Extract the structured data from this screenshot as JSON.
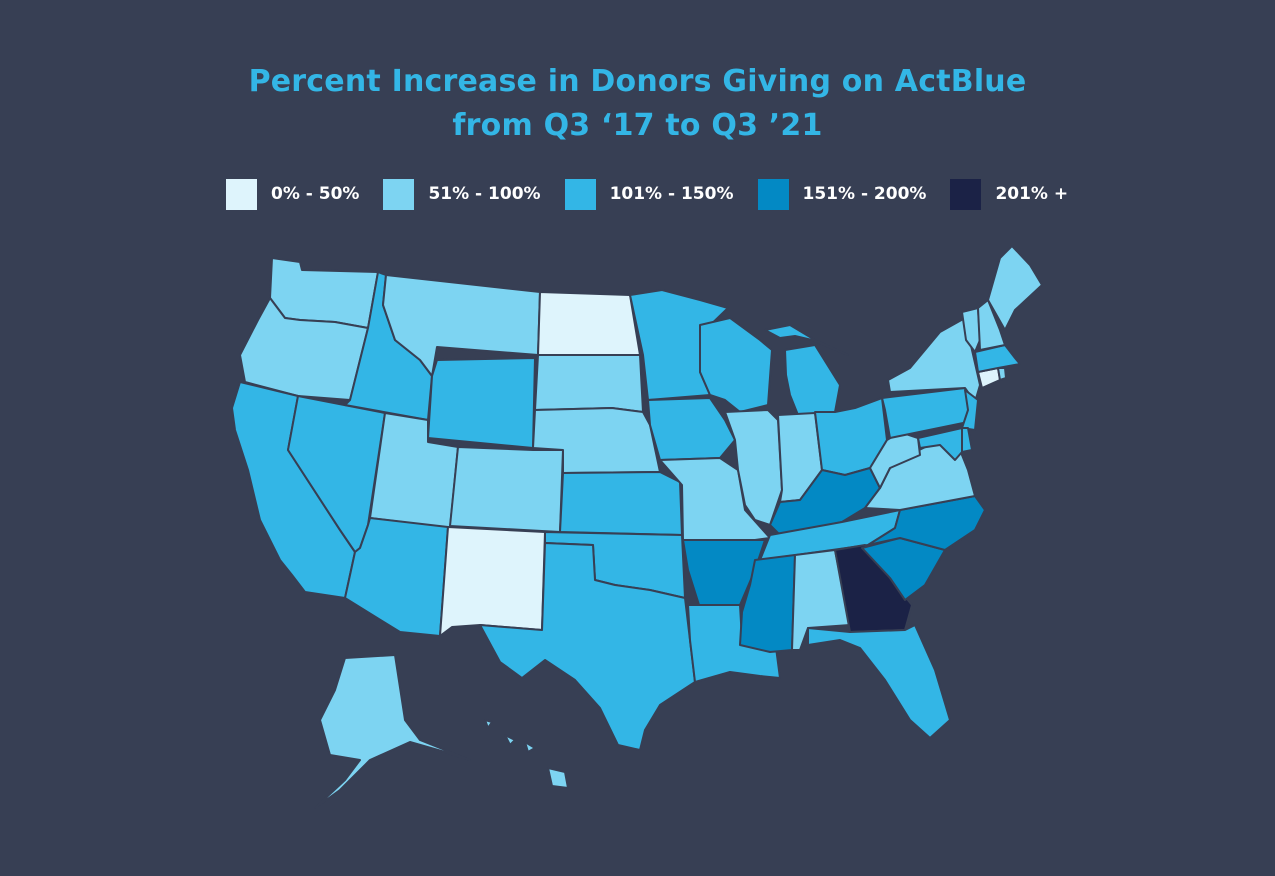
{
  "title": {
    "line1": "Percent Increase in Donors Giving on ActBlue",
    "line2": "from Q3 ‘17 to Q3 ’21"
  },
  "legend": [
    {
      "label": "0% - 50%",
      "bin": "b1",
      "color": "#def4fc"
    },
    {
      "label": "51% - 100%",
      "bin": "b2",
      "color": "#7dd4f2"
    },
    {
      "label": "101% - 150%",
      "bin": "b3",
      "color": "#33b6e6"
    },
    {
      "label": "151% - 200%",
      "bin": "b4",
      "color": "#0389c4"
    },
    {
      "label": "201% +",
      "bin": "b5",
      "color": "#1b2246"
    }
  ],
  "colors": {
    "background": "#373f54",
    "title": "#33b6e6",
    "state_border": "#373f54"
  },
  "map_data": {
    "type": "choropleth",
    "region": "United States",
    "states": [
      {
        "state": "WA",
        "bin": "b2"
      },
      {
        "state": "OR",
        "bin": "b2"
      },
      {
        "state": "CA",
        "bin": "b3"
      },
      {
        "state": "NV",
        "bin": "b3"
      },
      {
        "state": "ID",
        "bin": "b3"
      },
      {
        "state": "MT",
        "bin": "b2"
      },
      {
        "state": "WY",
        "bin": "b3"
      },
      {
        "state": "UT",
        "bin": "b2"
      },
      {
        "state": "AZ",
        "bin": "b3"
      },
      {
        "state": "CO",
        "bin": "b2"
      },
      {
        "state": "NM",
        "bin": "b1"
      },
      {
        "state": "ND",
        "bin": "b1"
      },
      {
        "state": "SD",
        "bin": "b2"
      },
      {
        "state": "NE",
        "bin": "b2"
      },
      {
        "state": "KS",
        "bin": "b3"
      },
      {
        "state": "OK",
        "bin": "b3"
      },
      {
        "state": "TX",
        "bin": "b3"
      },
      {
        "state": "MN",
        "bin": "b3"
      },
      {
        "state": "IA",
        "bin": "b3"
      },
      {
        "state": "MO",
        "bin": "b2"
      },
      {
        "state": "AR",
        "bin": "b4"
      },
      {
        "state": "LA",
        "bin": "b3"
      },
      {
        "state": "WI",
        "bin": "b3"
      },
      {
        "state": "IL",
        "bin": "b2"
      },
      {
        "state": "MI",
        "bin": "b3"
      },
      {
        "state": "IN",
        "bin": "b2"
      },
      {
        "state": "OH",
        "bin": "b3"
      },
      {
        "state": "KY",
        "bin": "b4"
      },
      {
        "state": "TN",
        "bin": "b3"
      },
      {
        "state": "MS",
        "bin": "b4"
      },
      {
        "state": "AL",
        "bin": "b2"
      },
      {
        "state": "GA",
        "bin": "b5"
      },
      {
        "state": "FL",
        "bin": "b3"
      },
      {
        "state": "SC",
        "bin": "b4"
      },
      {
        "state": "NC",
        "bin": "b4"
      },
      {
        "state": "VA",
        "bin": "b2"
      },
      {
        "state": "WV",
        "bin": "b2"
      },
      {
        "state": "PA",
        "bin": "b3"
      },
      {
        "state": "NY",
        "bin": "b2"
      },
      {
        "state": "NJ",
        "bin": "b3"
      },
      {
        "state": "DE",
        "bin": "b3"
      },
      {
        "state": "MD",
        "bin": "b3"
      },
      {
        "state": "CT",
        "bin": "b1"
      },
      {
        "state": "RI",
        "bin": "b2"
      },
      {
        "state": "MA",
        "bin": "b3"
      },
      {
        "state": "VT",
        "bin": "b2"
      },
      {
        "state": "NH",
        "bin": "b2"
      },
      {
        "state": "ME",
        "bin": "b2"
      },
      {
        "state": "AK",
        "bin": "b2"
      },
      {
        "state": "HI",
        "bin": "b2"
      }
    ]
  }
}
